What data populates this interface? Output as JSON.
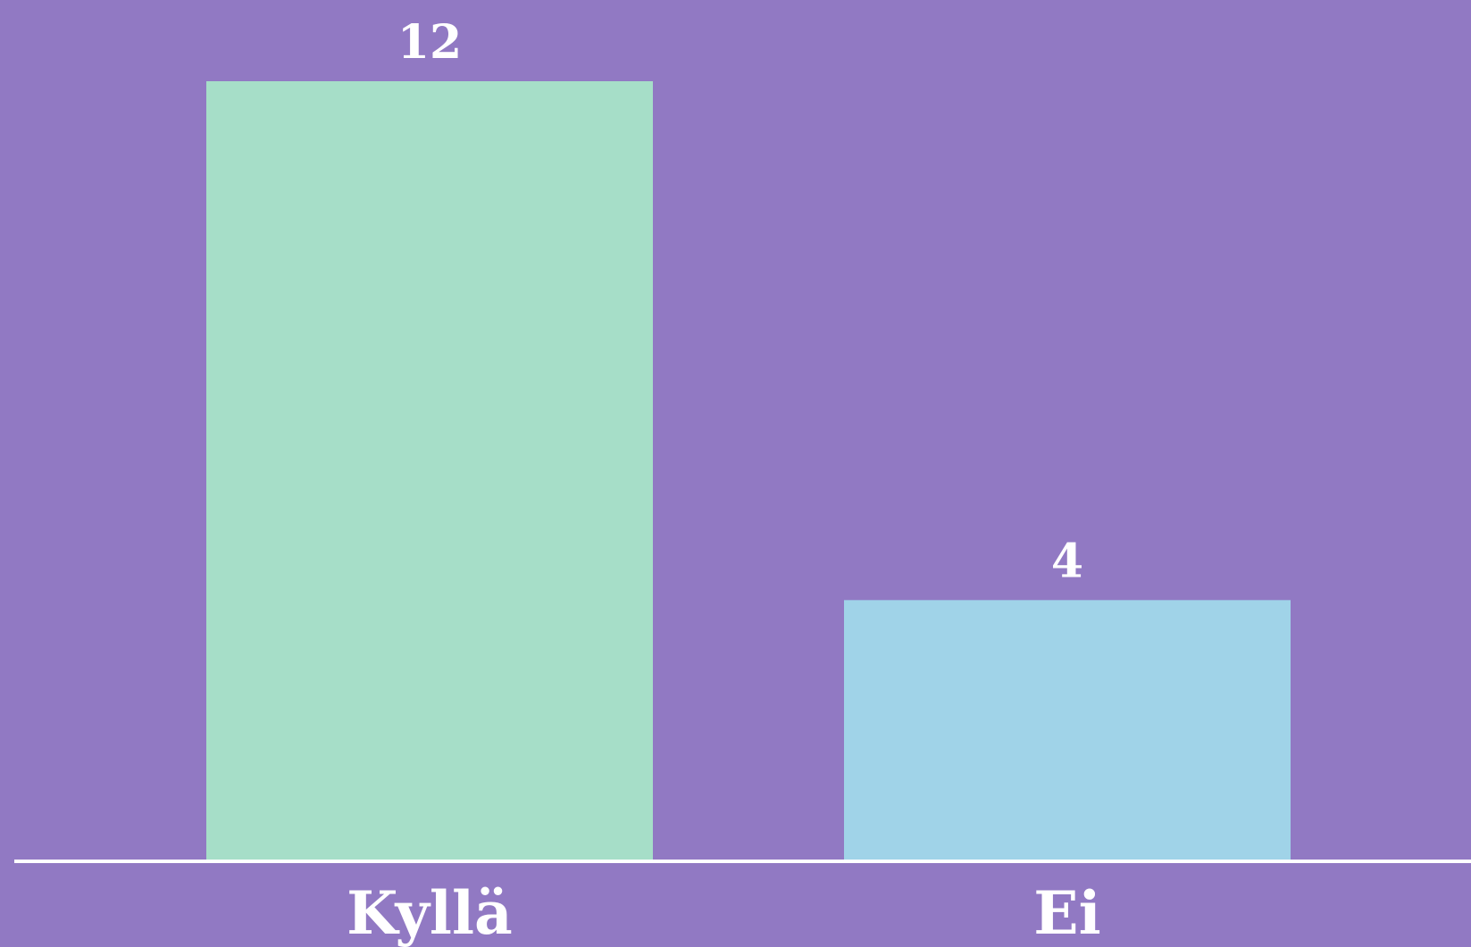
{
  "chart_data": {
    "type": "bar",
    "categories": [
      "Kyllä",
      "Ei"
    ],
    "values": [
      12,
      4
    ],
    "value_labels": [
      "12",
      "4"
    ],
    "title": "",
    "xlabel": "",
    "ylabel": "",
    "ylim": [
      0,
      12
    ],
    "grid": false,
    "legend": "none",
    "colors": {
      "background": "#9179c3",
      "bars": [
        "#a6dec8",
        "#a0d3e8"
      ],
      "baseline": "#ffffff",
      "text": "#ffffff"
    }
  }
}
